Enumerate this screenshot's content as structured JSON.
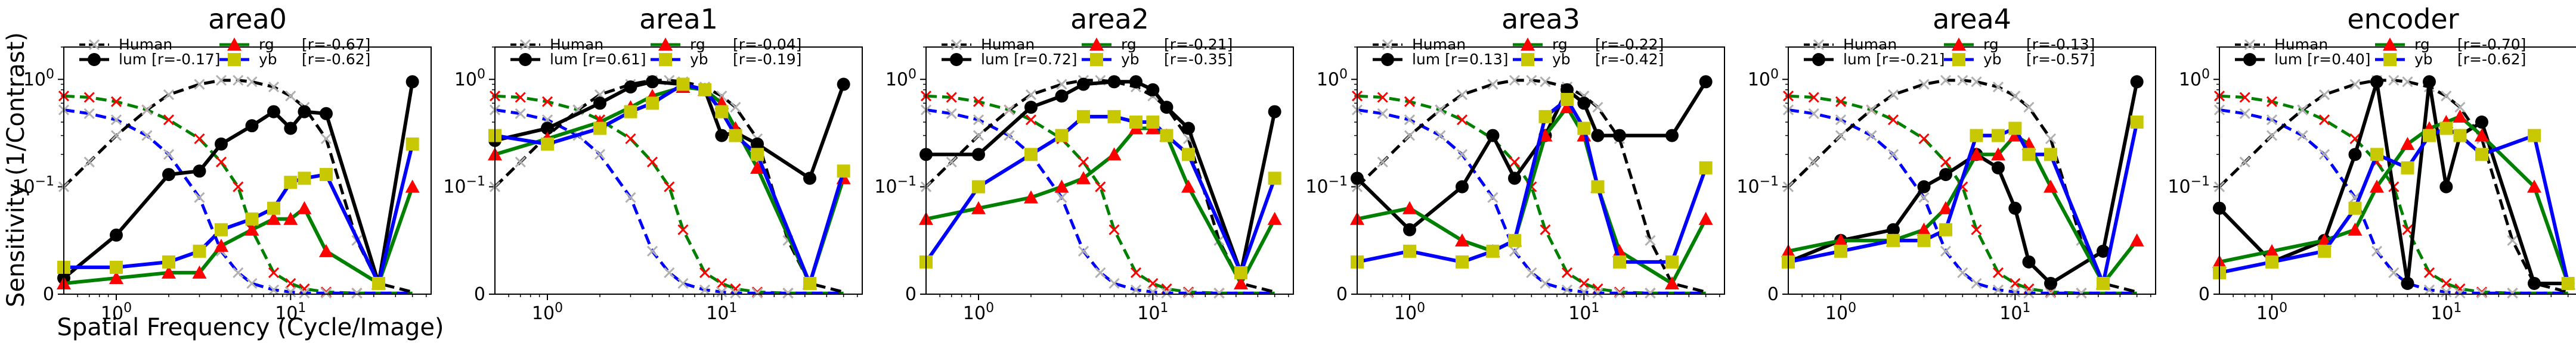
{
  "figure": {
    "ylabel": "Sensitivity (1/Contrast)",
    "xlabel": "Spatial Frequency (Cycle/Image)",
    "tick_labels": {
      "x1": "10",
      "x1_exp": "0",
      "x10": "10",
      "x10_exp": "1",
      "y1": "10",
      "y1_exp": "0",
      "y01": "10",
      "y01_exp": "−1",
      "y0": "0"
    }
  },
  "legend_labels": {
    "human": "Human",
    "lum": "lum",
    "rg": "rg",
    "yb": "yb"
  },
  "colors": {
    "human": "#000000",
    "lum": "#000000",
    "rg": "#008000",
    "yb": "#0000ff",
    "rg_marker": "#ff0000",
    "yb_marker": "#c8c800",
    "human_marker": "#b0b0b0"
  },
  "chart_data": [
    {
      "type": "line",
      "title": "area0",
      "xscale": "log",
      "xlim": [
        0.5,
        64
      ],
      "yscale": "symlog",
      "ylim": [
        0,
        2
      ],
      "r": {
        "lum": "[r=-0.17]",
        "rg": "[r=-0.67]",
        "yb": "[r=-0.62]"
      },
      "series": [
        {
          "name": "lum",
          "x": [
            0.5,
            1,
            2,
            3,
            4,
            6,
            8,
            10,
            12,
            16,
            32,
            50
          ],
          "y": [
            0.015,
            0.055,
            0.13,
            0.14,
            0.25,
            0.37,
            0.5,
            0.35,
            0.5,
            0.48,
            0.01,
            0.95
          ]
        },
        {
          "name": "rg",
          "x": [
            0.5,
            1,
            2,
            3,
            4,
            6,
            8,
            10,
            12,
            16,
            32,
            50
          ],
          "y": [
            0.01,
            0.015,
            0.02,
            0.02,
            0.045,
            0.06,
            0.07,
            0.07,
            0.08,
            0.04,
            0.01,
            0.1
          ]
        },
        {
          "name": "yb",
          "x": [
            0.5,
            1,
            2,
            3,
            4,
            6,
            8,
            10,
            12,
            16,
            32,
            50
          ],
          "y": [
            0.025,
            0.025,
            0.03,
            0.04,
            0.06,
            0.07,
            0.08,
            0.11,
            0.12,
            0.13,
            0.01,
            0.25
          ]
        }
      ]
    },
    {
      "type": "line",
      "title": "area1",
      "xscale": "log",
      "xlim": [
        0.5,
        64
      ],
      "yscale": "symlog",
      "ylim": [
        0,
        2
      ],
      "r": {
        "lum": "[r=0.61]",
        "rg": "[r=-0.04]",
        "yb": "[r=-0.19]"
      },
      "series": [
        {
          "name": "lum",
          "x": [
            0.5,
            1,
            2,
            3,
            4,
            6,
            8,
            10,
            12,
            16,
            32,
            50
          ],
          "y": [
            0.27,
            0.35,
            0.6,
            0.85,
            0.95,
            0.9,
            0.8,
            0.3,
            0.32,
            0.25,
            0.12,
            0.9
          ]
        },
        {
          "name": "rg",
          "x": [
            0.5,
            1,
            2,
            3,
            4,
            6,
            8,
            10,
            12,
            16,
            32,
            50
          ],
          "y": [
            0.2,
            0.28,
            0.4,
            0.55,
            0.7,
            0.85,
            0.8,
            0.6,
            0.35,
            0.15,
            0.01,
            0.12
          ]
        },
        {
          "name": "yb",
          "x": [
            0.5,
            1,
            2,
            3,
            4,
            6,
            8,
            10,
            12,
            16,
            32,
            50
          ],
          "y": [
            0.3,
            0.25,
            0.35,
            0.5,
            0.6,
            0.9,
            0.8,
            0.5,
            0.3,
            0.2,
            0.01,
            0.14
          ]
        }
      ]
    },
    {
      "type": "line",
      "title": "area2",
      "xscale": "log",
      "xlim": [
        0.5,
        64
      ],
      "yscale": "symlog",
      "ylim": [
        0,
        2
      ],
      "r": {
        "lum": "[r=0.72]",
        "rg": "[r=-0.21]",
        "yb": "[r=-0.35]"
      },
      "series": [
        {
          "name": "lum",
          "x": [
            0.5,
            1,
            2,
            3,
            4,
            6,
            8,
            10,
            12,
            16,
            32,
            50
          ],
          "y": [
            0.2,
            0.2,
            0.55,
            0.7,
            0.9,
            0.95,
            0.95,
            0.8,
            0.55,
            0.35,
            0.02,
            0.5
          ]
        },
        {
          "name": "rg",
          "x": [
            0.5,
            1,
            2,
            3,
            4,
            6,
            8,
            10,
            12,
            16,
            32,
            50
          ],
          "y": [
            0.07,
            0.08,
            0.09,
            0.1,
            0.12,
            0.2,
            0.35,
            0.35,
            0.3,
            0.1,
            0.01,
            0.07
          ]
        },
        {
          "name": "yb",
          "x": [
            0.5,
            1,
            2,
            3,
            4,
            6,
            8,
            10,
            12,
            16,
            32,
            50
          ],
          "y": [
            0.03,
            0.1,
            0.2,
            0.3,
            0.45,
            0.45,
            0.4,
            0.4,
            0.3,
            0.2,
            0.02,
            0.12
          ]
        }
      ]
    },
    {
      "type": "line",
      "title": "area3",
      "xscale": "log",
      "xlim": [
        0.5,
        64
      ],
      "yscale": "symlog",
      "ylim": [
        0,
        2
      ],
      "r": {
        "lum": "[r=0.13]",
        "rg": "[r=-0.22]",
        "yb": "[r=-0.42]"
      },
      "series": [
        {
          "name": "lum",
          "x": [
            0.5,
            1,
            2,
            3,
            4,
            6,
            8,
            10,
            12,
            16,
            32,
            50
          ],
          "y": [
            0.12,
            0.06,
            0.1,
            0.3,
            0.12,
            0.3,
            0.8,
            0.6,
            0.3,
            0.3,
            0.3,
            0.95
          ]
        },
        {
          "name": "rg",
          "x": [
            0.5,
            1,
            2,
            3,
            4,
            6,
            8,
            10,
            12,
            16,
            32,
            50
          ],
          "y": [
            0.07,
            0.08,
            0.05,
            0.04,
            0.05,
            0.3,
            0.55,
            0.3,
            0.1,
            0.04,
            0.01,
            0.07
          ]
        },
        {
          "name": "yb",
          "x": [
            0.5,
            1,
            2,
            3,
            4,
            6,
            8,
            10,
            12,
            16,
            32,
            50
          ],
          "y": [
            0.03,
            0.04,
            0.03,
            0.04,
            0.05,
            0.45,
            0.65,
            0.35,
            0.1,
            0.03,
            0.03,
            0.15
          ]
        }
      ]
    },
    {
      "type": "line",
      "title": "area4",
      "xscale": "log",
      "xlim": [
        0.5,
        64
      ],
      "yscale": "symlog",
      "ylim": [
        0,
        2
      ],
      "r": {
        "lum": "[r=-0.21]",
        "rg": "[r=-0.13]",
        "yb": "[r=-0.57]"
      },
      "series": [
        {
          "name": "lum",
          "x": [
            0.5,
            1,
            2,
            3,
            4,
            6,
            8,
            10,
            12,
            16,
            32,
            50
          ],
          "y": [
            0.03,
            0.05,
            0.06,
            0.1,
            0.13,
            0.2,
            0.15,
            0.08,
            0.03,
            0.01,
            0.04,
            0.95
          ]
        },
        {
          "name": "rg",
          "x": [
            0.5,
            1,
            2,
            3,
            4,
            6,
            8,
            10,
            12,
            16,
            32,
            50
          ],
          "y": [
            0.04,
            0.05,
            0.05,
            0.06,
            0.08,
            0.2,
            0.2,
            0.3,
            0.25,
            0.1,
            0.01,
            0.05
          ]
        },
        {
          "name": "yb",
          "x": [
            0.5,
            1,
            2,
            3,
            4,
            6,
            8,
            10,
            12,
            16,
            32,
            50
          ],
          "y": [
            0.03,
            0.04,
            0.05,
            0.05,
            0.06,
            0.3,
            0.3,
            0.35,
            0.2,
            0.2,
            0.01,
            0.4
          ]
        }
      ]
    },
    {
      "type": "line",
      "title": "encoder",
      "xscale": "log",
      "xlim": [
        0.5,
        64
      ],
      "yscale": "symlog",
      "ylim": [
        0,
        2
      ],
      "r": {
        "lum": "[r=0.40]",
        "rg": "[r=-0.70]",
        "yb": "[r=-0.62]"
      },
      "series": [
        {
          "name": "lum",
          "x": [
            0.5,
            1,
            2,
            3,
            4,
            6,
            8,
            10,
            12,
            16,
            32,
            50
          ],
          "y": [
            0.08,
            0.03,
            0.05,
            0.2,
            0.95,
            0.01,
            0.95,
            0.1,
            0.3,
            0.4,
            0.01,
            0.01
          ]
        },
        {
          "name": "rg",
          "x": [
            0.5,
            1,
            2,
            3,
            4,
            6,
            8,
            10,
            12,
            16,
            32,
            50
          ],
          "y": [
            0.03,
            0.04,
            0.05,
            0.06,
            0.1,
            0.25,
            0.35,
            0.4,
            0.45,
            0.3,
            0.1,
            0.01
          ]
        },
        {
          "name": "yb",
          "x": [
            0.5,
            1,
            2,
            3,
            4,
            6,
            8,
            10,
            12,
            16,
            32,
            50
          ],
          "y": [
            0.02,
            0.03,
            0.04,
            0.08,
            0.2,
            0.15,
            0.3,
            0.35,
            0.3,
            0.2,
            0.3,
            0.01
          ]
        }
      ]
    }
  ],
  "human_csf": {
    "lum": {
      "x": [
        0.5,
        0.7,
        1,
        1.5,
        2,
        3,
        4,
        5,
        6,
        8,
        10,
        12,
        16,
        24,
        32,
        50
      ],
      "y": [
        0.1,
        0.17,
        0.3,
        0.52,
        0.72,
        0.9,
        0.98,
        0.98,
        0.95,
        0.85,
        0.7,
        0.55,
        0.28,
        0.05,
        0.01,
        0.002
      ]
    },
    "rg": {
      "x": [
        0.5,
        0.7,
        1,
        1.5,
        2,
        3,
        4,
        5,
        6,
        8,
        10,
        12,
        16,
        24,
        32,
        50
      ],
      "y": [
        0.7,
        0.68,
        0.62,
        0.52,
        0.42,
        0.28,
        0.17,
        0.1,
        0.06,
        0.02,
        0.01,
        0.005,
        0.002,
        0.001,
        0.001,
        0.001
      ]
    },
    "yb": {
      "x": [
        0.5,
        0.7,
        1,
        1.5,
        2,
        3,
        4,
        5,
        6,
        8,
        10,
        12,
        16,
        24,
        32,
        50
      ],
      "y": [
        0.52,
        0.48,
        0.42,
        0.3,
        0.2,
        0.09,
        0.04,
        0.02,
        0.01,
        0.004,
        0.002,
        0.001,
        0.001,
        0.001,
        0.001,
        0.001
      ]
    }
  }
}
